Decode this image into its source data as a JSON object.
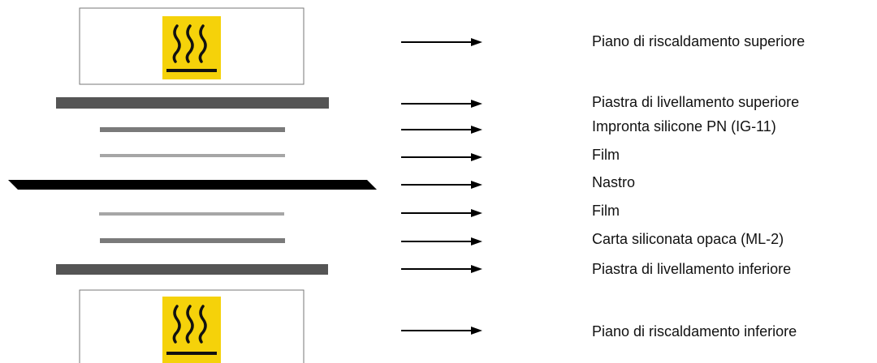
{
  "layers": [
    {
      "id": "heater-top",
      "kind": "heater",
      "label": "Piano di riscaldamento superiore"
    },
    {
      "id": "leveling-plate-top",
      "kind": "plate",
      "label": "Piastra di livellamento superiore"
    },
    {
      "id": "silicone-imprint",
      "kind": "layer",
      "label": "Impronta silicone PN (IG-11)"
    },
    {
      "id": "film-top",
      "kind": "film",
      "label": "Film"
    },
    {
      "id": "tape",
      "kind": "tape",
      "label": "Nastro"
    },
    {
      "id": "film-bottom",
      "kind": "film",
      "label": "Film"
    },
    {
      "id": "matte-paper",
      "kind": "layer",
      "label": "Carta siliconata opaca (ML-2)"
    },
    {
      "id": "leveling-plate-bottom",
      "kind": "plate",
      "label": "Piastra di livellamento inferiore"
    },
    {
      "id": "heater-bottom",
      "kind": "heater",
      "label": "Piano di riscaldamento inferiore"
    }
  ],
  "colors": {
    "heat_symbol_bg": "#f5d20a",
    "heat_symbol_stroke": "#111111",
    "plate": "#555555",
    "layer": "#7a7a7a",
    "film": "#a6a6a6",
    "tape": "#000000",
    "arrow": "#000000",
    "box_border": "#777777"
  },
  "icons": {
    "heater": "hot-surface-warning-icon",
    "connector": "right-arrow-icon"
  }
}
